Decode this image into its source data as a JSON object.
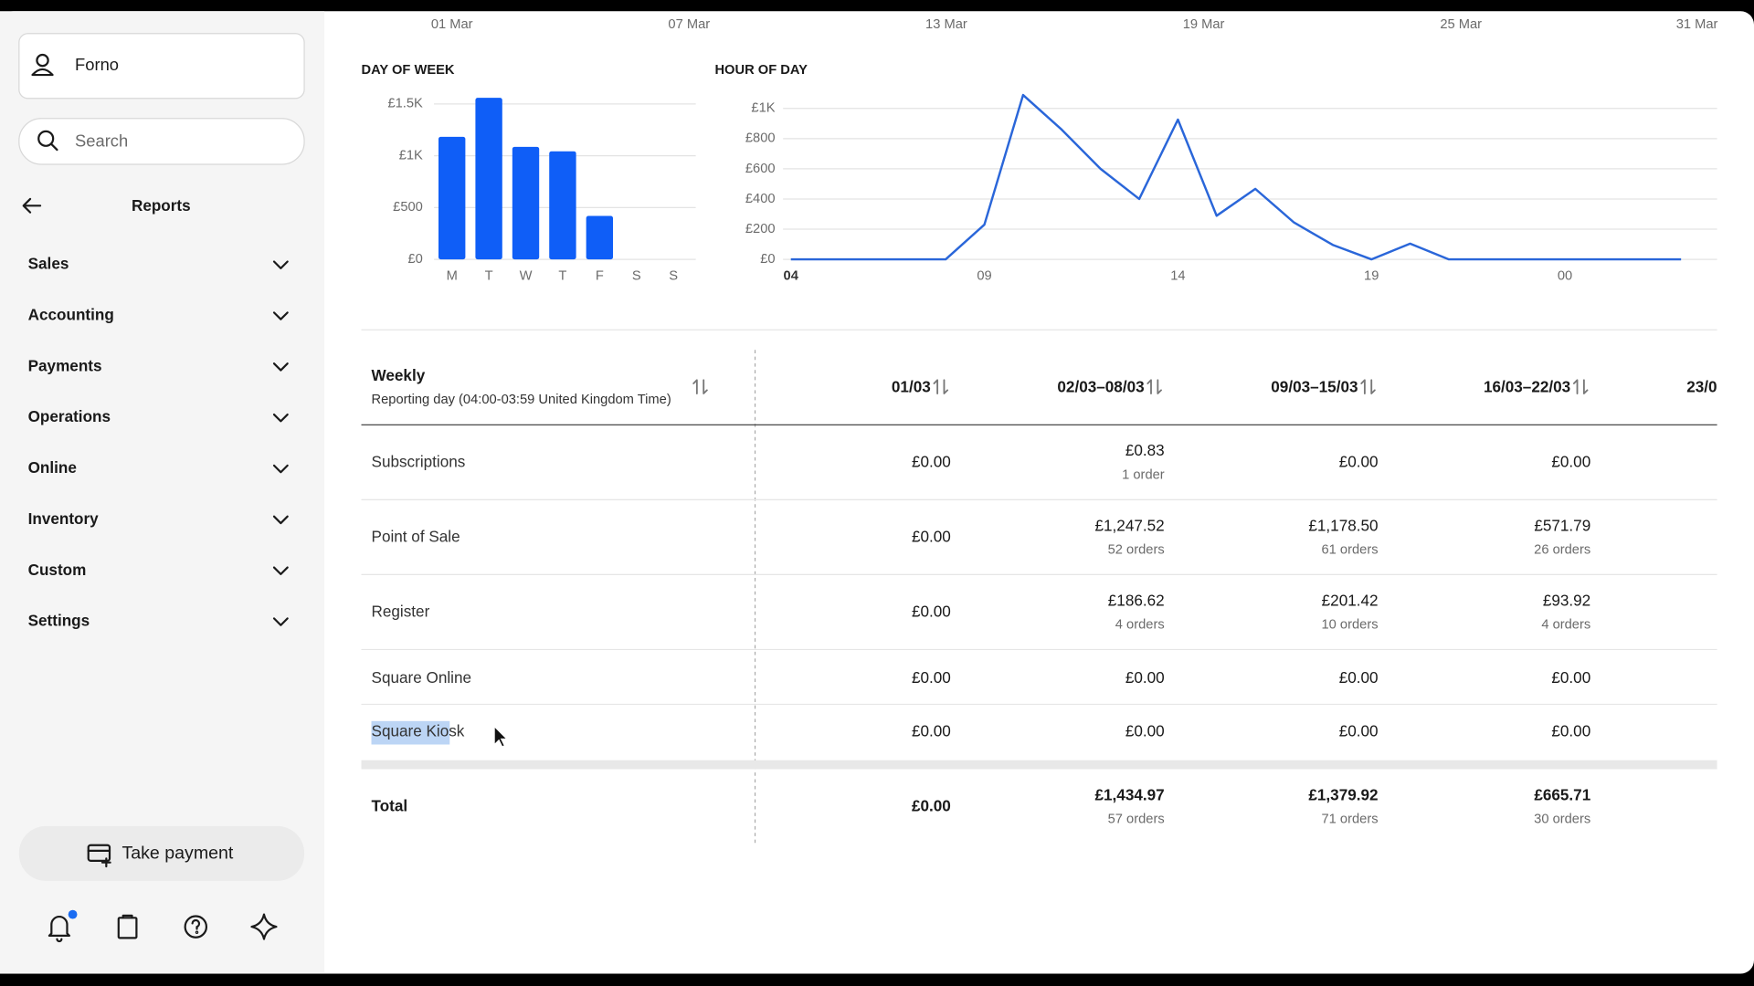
{
  "sidebar": {
    "account": "Forno",
    "search": "Search",
    "section": "Reports",
    "menu": [
      "Sales",
      "Accounting",
      "Payments",
      "Operations",
      "Online",
      "Inventory",
      "Custom",
      "Settings"
    ],
    "take_payment": "Take payment"
  },
  "timeline_axis_labels": [
    "01 Mar",
    "07 Mar",
    "13 Mar",
    "19 Mar",
    "25 Mar",
    "31 Mar"
  ],
  "chart_data": [
    {
      "type": "bar",
      "title": "DAY OF WEEK",
      "categories": [
        "M",
        "T",
        "W",
        "T",
        "F",
        "S",
        "S"
      ],
      "values": [
        1183,
        1559,
        1086,
        1043,
        419,
        0,
        0
      ],
      "color": "#0f5ef7",
      "ylim": [
        0,
        1600
      ],
      "yticks": [
        {
          "value": 0,
          "label": "£0"
        },
        {
          "value": 500,
          "label": "£500"
        },
        {
          "value": 1000,
          "label": "£1K"
        },
        {
          "value": 1500,
          "label": "£1.5K"
        }
      ],
      "grid": true
    },
    {
      "type": "line",
      "title": "HOUR OF DAY",
      "categories": [
        "04",
        null,
        null,
        null,
        null,
        "09",
        null,
        null,
        null,
        null,
        "14",
        null,
        null,
        null,
        null,
        "19",
        null,
        null,
        null,
        null,
        "00",
        null,
        null,
        null
      ],
      "values": [
        0,
        0,
        0,
        0,
        0,
        230,
        1089,
        859,
        600,
        400,
        926,
        289,
        467,
        244,
        96,
        0,
        104,
        0,
        0,
        0,
        0,
        0,
        0,
        0
      ],
      "color": "#2a66d9",
      "ylim": [
        0,
        1100
      ],
      "yticks": [
        {
          "value": 0,
          "label": "£0"
        },
        {
          "value": 200,
          "label": "£200"
        },
        {
          "value": 400,
          "label": "£400"
        },
        {
          "value": 600,
          "label": "£600"
        },
        {
          "value": 800,
          "label": "£800"
        },
        {
          "value": 1000,
          "label": "£1K"
        }
      ],
      "grid": true
    }
  ],
  "table": {
    "header": {
      "title": "Weekly",
      "subtitle": "Reporting day (04:00-03:59 United Kingdom Time)",
      "columns": [
        "01/03",
        "02/03–08/03",
        "09/03–15/03",
        "16/03–22/03",
        "23/0"
      ]
    },
    "rows": [
      {
        "label": "Subscriptions",
        "cells": [
          [
            "£0.00"
          ],
          [
            "£0.83",
            "1 order"
          ],
          [
            "£0.00"
          ],
          [
            "£0.00"
          ]
        ]
      },
      {
        "label": "Point of Sale",
        "cells": [
          [
            "£0.00"
          ],
          [
            "£1,247.52",
            "52 orders"
          ],
          [
            "£1,178.50",
            "61 orders"
          ],
          [
            "£571.79",
            "26 orders"
          ]
        ]
      },
      {
        "label": "Register",
        "cells": [
          [
            "£0.00"
          ],
          [
            "£186.62",
            "4 orders"
          ],
          [
            "£201.42",
            "10 orders"
          ],
          [
            "£93.92",
            "4 orders"
          ]
        ]
      },
      {
        "label": "Square Online",
        "cells": [
          [
            "£0.00"
          ],
          [
            "£0.00"
          ],
          [
            "£0.00"
          ],
          [
            "£0.00"
          ]
        ]
      },
      {
        "label": "Square Kiosk",
        "cells": [
          [
            "£0.00"
          ],
          [
            "£0.00"
          ],
          [
            "£0.00"
          ],
          [
            "£0.00"
          ]
        ]
      }
    ],
    "total": {
      "label": "Total",
      "cells": [
        [
          "£0.00"
        ],
        [
          "£1,434.97",
          "57 orders"
        ],
        [
          "£1,379.92",
          "71 orders"
        ],
        [
          "£665.71",
          "30 orders"
        ]
      ]
    }
  }
}
